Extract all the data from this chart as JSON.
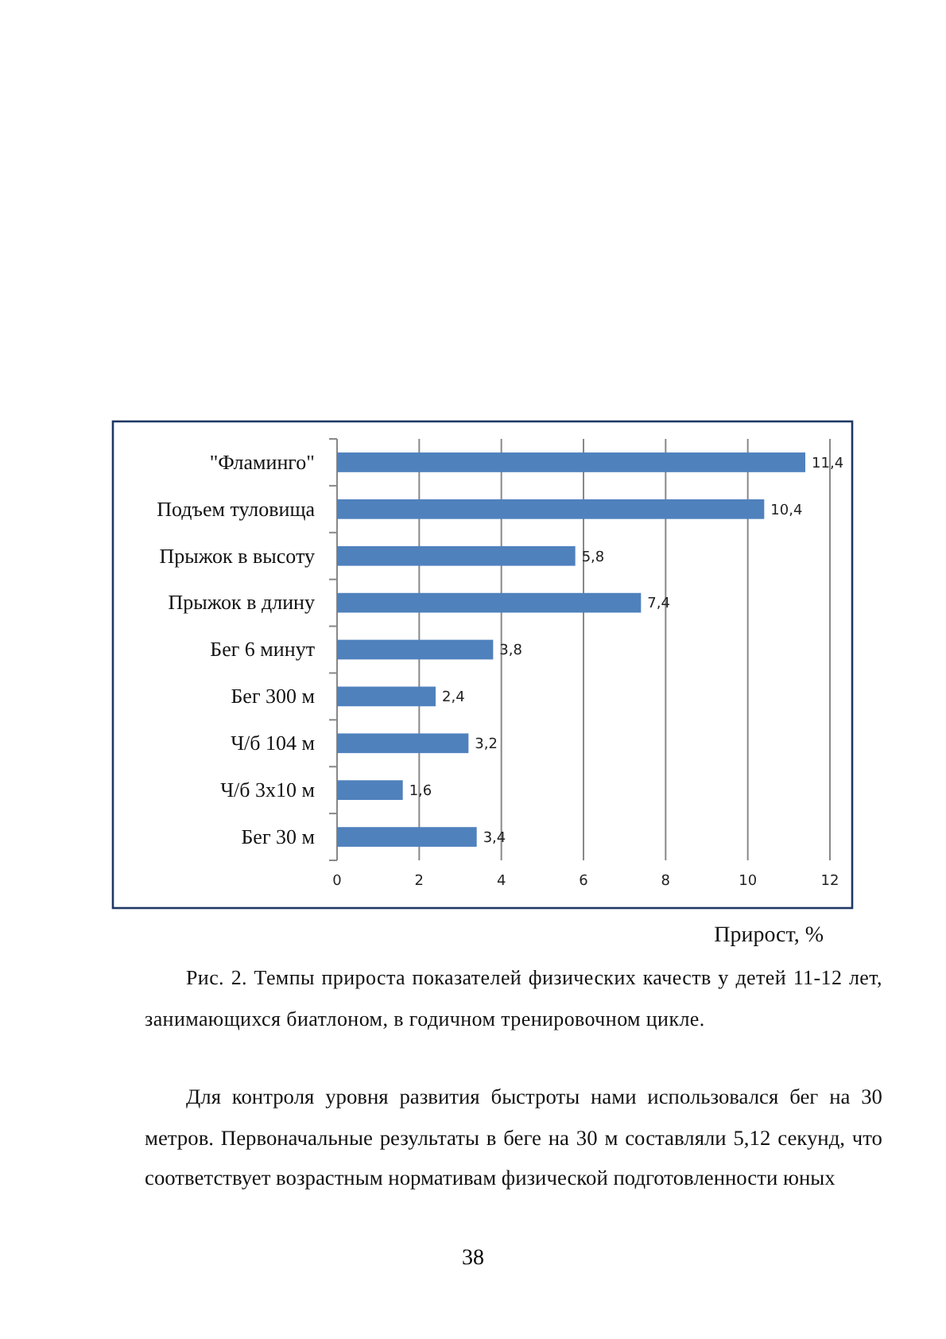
{
  "chart_data": {
    "type": "bar",
    "orientation": "horizontal",
    "categories": [
      "\"Фламинго\"",
      "Подъем туловища",
      "Прыжок в высоту",
      "Прыжок в длину",
      "Бег 6 минут",
      "Бег 300 м",
      "Ч/б 104 м",
      "Ч/б 3х10 м",
      "Бег 30 м"
    ],
    "values": [
      11.4,
      10.4,
      5.8,
      7.4,
      3.8,
      2.4,
      3.2,
      1.6,
      3.4
    ],
    "color": "#4f81bd",
    "xlim": [
      0,
      12
    ],
    "xticks": [
      0,
      2,
      4,
      6,
      8,
      10,
      12
    ],
    "value_labels": [
      "11,4",
      "10,4",
      "5,8",
      "7,4",
      "3,8",
      "2,4",
      "3,2",
      "1,6",
      "3,4"
    ],
    "grid": "x",
    "xlabel": "Прирост, %",
    "annotations": [
      "Рис. 2. Темпы прироста показателей физических качеств у детей 11-12 лет, занимающихся биатлоном, в годичном тренировочном цикле.",
      "Для контроля уровня развития быстроты нами использовался  бег на 30 метров. Первоначальные результаты в беге на 30 м составляли 5,12 секунд, что соответствует  возрастным нормативам физической подготовленности юных",
      "38"
    ]
  }
}
